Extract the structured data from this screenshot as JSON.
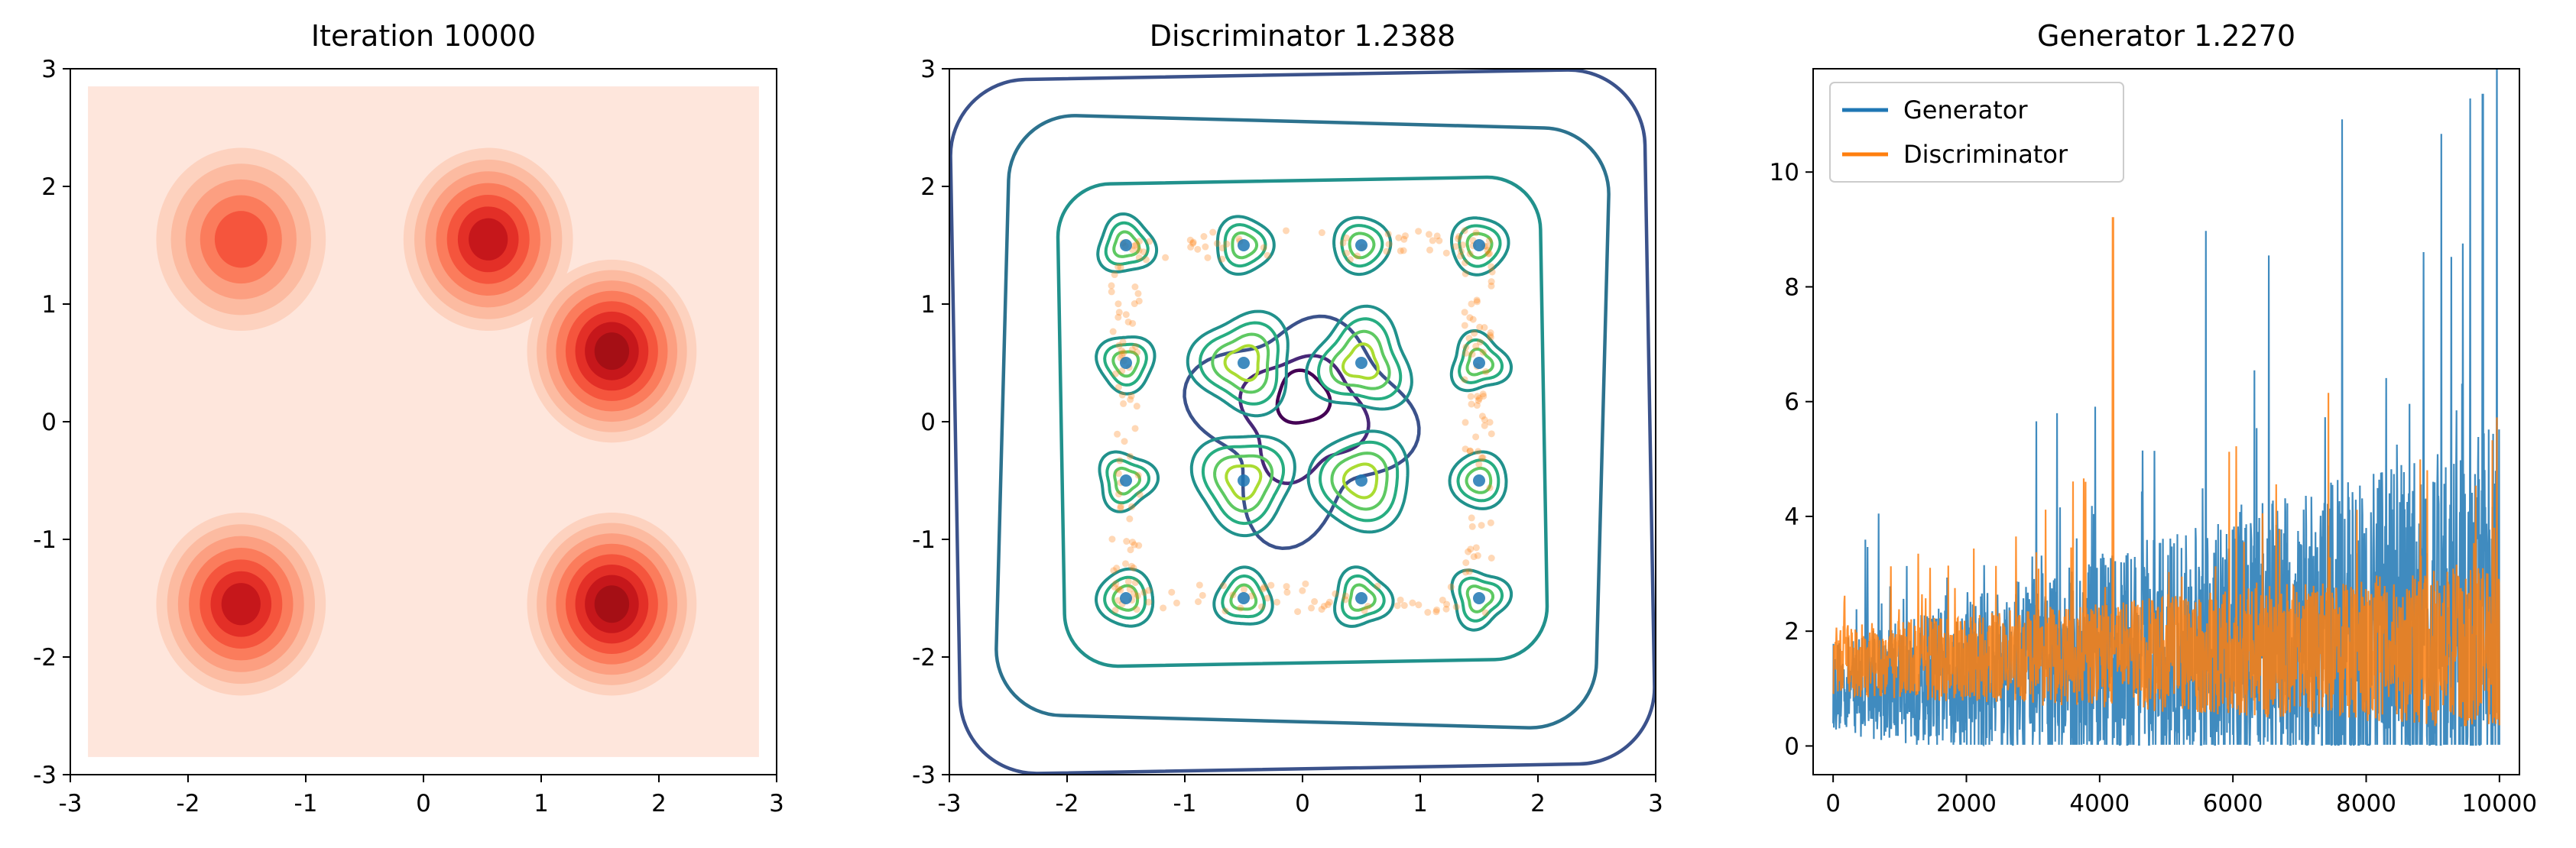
{
  "chart_data": [
    {
      "type": "heatmap",
      "title": "Iteration 10000",
      "xlim": [
        -3,
        3
      ],
      "ylim": [
        -3,
        3
      ],
      "xticks": [
        "-3",
        "-2",
        "-1",
        "0",
        "1",
        "2",
        "3"
      ],
      "yticks": [
        "-3",
        "-2",
        "-1",
        "0",
        "1",
        "2",
        "3"
      ],
      "modes": [
        {
          "x": -1.55,
          "y": 1.55,
          "intensity": 0.55
        },
        {
          "x": 0.55,
          "y": 1.55,
          "intensity": 0.78
        },
        {
          "x": 1.6,
          "y": 0.6,
          "intensity": 0.92
        },
        {
          "x": -1.55,
          "y": -1.55,
          "intensity": 0.75
        },
        {
          "x": 1.6,
          "y": -1.55,
          "intensity": 0.85
        }
      ],
      "colormap": "reds"
    },
    {
      "type": "contour",
      "title": "Discriminator 1.2388",
      "xlim": [
        -3,
        3
      ],
      "ylim": [
        -3,
        3
      ],
      "xticks": [
        "-3",
        "-2",
        "-1",
        "0",
        "1",
        "2",
        "3"
      ],
      "yticks": [
        "-3",
        "-2",
        "-1",
        "0",
        "1",
        "2",
        "3"
      ],
      "real_points": [
        [
          -1.5,
          1.5
        ],
        [
          -0.5,
          1.5
        ],
        [
          0.5,
          1.5
        ],
        [
          1.5,
          1.5
        ],
        [
          -1.5,
          0.5
        ],
        [
          -0.5,
          0.5
        ],
        [
          0.5,
          0.5
        ],
        [
          1.5,
          0.5
        ],
        [
          -1.5,
          -0.5
        ],
        [
          -0.5,
          -0.5
        ],
        [
          0.5,
          -0.5
        ],
        [
          1.5,
          -0.5
        ],
        [
          -1.5,
          -1.5
        ],
        [
          -0.5,
          -1.5
        ],
        [
          0.5,
          -1.5
        ],
        [
          1.5,
          -1.5
        ]
      ],
      "colormap": "viridis"
    },
    {
      "type": "line",
      "title": "Generator 1.2270",
      "xlim": [
        -300,
        10300
      ],
      "ylim": [
        -0.5,
        11.8
      ],
      "xticks": [
        "0",
        "2000",
        "4000",
        "6000",
        "8000",
        "10000"
      ],
      "yticks": [
        "0",
        "2",
        "4",
        "6",
        "8",
        "10"
      ],
      "legend_position": "top-left",
      "series": [
        {
          "name": "Generator",
          "color": "#1f77b4",
          "peak": 11.35,
          "peak_x": 9750,
          "base": 0.8
        },
        {
          "name": "Discriminator",
          "color": "#ff7f0e",
          "peak": 9.2,
          "peak_x": 4200,
          "base": 1.3
        }
      ]
    }
  ]
}
